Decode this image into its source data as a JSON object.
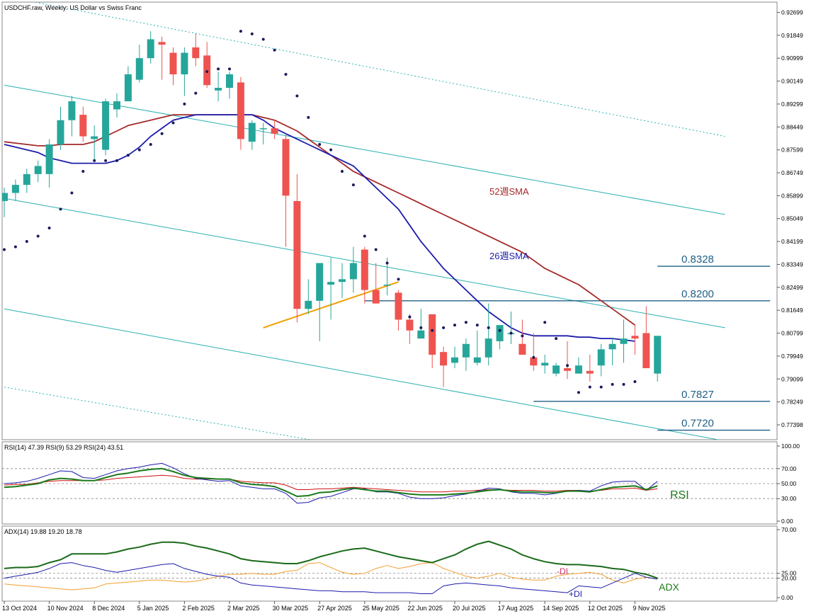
{
  "header": {
    "main_title": "USDCHF.raw, Weekly:  US Dollar vs Swiss Franc",
    "rsi_title": "RSI(14) 47.39 RSI(9) 53.29 RSI(24) 43.51",
    "adx_title": "ADX(14) 19.88 19.20 18.78"
  },
  "colors": {
    "bull": "#26a69a",
    "bear": "#ef5350",
    "sma26": "#1c1caa",
    "sma52": "#a52a2a",
    "channel": "#2ab0b0",
    "sar": "#1a1a5e",
    "level": "#1f5f85",
    "trendline": "#f0a000",
    "rsi14": "#1a7a1a",
    "rsi9": "#1c1caa",
    "rsi24": "#cc1111",
    "adx": "#1a6a1a",
    "plus_di": "#1c1caa",
    "minus_di": "#f0a030"
  },
  "chart_data": {
    "type": "candlestick",
    "title": "USDCHF.raw, Weekly:  US Dollar vs Swiss Franc",
    "ylim": [
      0.769,
      0.93
    ],
    "price_ticks": [
      "0.92699",
      "0.91849",
      "0.90999",
      "0.90149",
      "0.89299",
      "0.88449",
      "0.87599",
      "0.86749",
      "0.85899",
      "0.85049",
      "0.84199",
      "0.83349",
      "0.82499",
      "0.81649",
      "0.80799",
      "0.79949",
      "0.79099",
      "0.78249",
      "0.77398"
    ],
    "x_labels": [
      {
        "label": "13 Oct 2024",
        "index": 0
      },
      {
        "label": "10 Nov 2024",
        "index": 4
      },
      {
        "label": "8 Dec 2024",
        "index": 8
      },
      {
        "label": "5 Jan 2025",
        "index": 12
      },
      {
        "label": "2 Feb 2025",
        "index": 16
      },
      {
        "label": "2 Mar 2025",
        "index": 20
      },
      {
        "label": "30 Mar 2025",
        "index": 24
      },
      {
        "label": "27 Apr 2025",
        "index": 28
      },
      {
        "label": "25 May 2025",
        "index": 32
      },
      {
        "label": "22 Jun 2025",
        "index": 36
      },
      {
        "label": "20 Jul 2025",
        "index": 40
      },
      {
        "label": "17 Aug 2025",
        "index": 44
      },
      {
        "label": "14 Sep 2025",
        "index": 48
      },
      {
        "label": "12 Oct 2025",
        "index": 52
      },
      {
        "label": "9 Nov 2025",
        "index": 56
      }
    ],
    "candles": [
      [
        0.857,
        0.862,
        0.851,
        0.86
      ],
      [
        0.86,
        0.865,
        0.857,
        0.863
      ],
      [
        0.863,
        0.869,
        0.86,
        0.867
      ],
      [
        0.867,
        0.872,
        0.864,
        0.87
      ],
      [
        0.867,
        0.88,
        0.862,
        0.878
      ],
      [
        0.878,
        0.892,
        0.876,
        0.887
      ],
      [
        0.887,
        0.896,
        0.881,
        0.894
      ],
      [
        0.889,
        0.892,
        0.879,
        0.881
      ],
      [
        0.88,
        0.885,
        0.872,
        0.881
      ],
      [
        0.876,
        0.895,
        0.874,
        0.894
      ],
      [
        0.891,
        0.897,
        0.888,
        0.894
      ],
      [
        0.894,
        0.907,
        0.894,
        0.904
      ],
      [
        0.902,
        0.915,
        0.901,
        0.91
      ],
      [
        0.91,
        0.92,
        0.908,
        0.917
      ],
      [
        0.916,
        0.918,
        0.902,
        0.915
      ],
      [
        0.912,
        0.914,
        0.9,
        0.904
      ],
      [
        0.904,
        0.914,
        0.896,
        0.912
      ],
      [
        0.914,
        0.919,
        0.907,
        0.91
      ],
      [
        0.911,
        0.916,
        0.899,
        0.9
      ],
      [
        0.898,
        0.905,
        0.894,
        0.899
      ],
      [
        0.899,
        0.905,
        0.895,
        0.904
      ],
      [
        0.901,
        0.903,
        0.876,
        0.88
      ],
      [
        0.879,
        0.887,
        0.876,
        0.886
      ],
      [
        0.884,
        0.886,
        0.878,
        0.884
      ],
      [
        0.884,
        0.887,
        0.88,
        0.882
      ],
      [
        0.88,
        0.882,
        0.84,
        0.859
      ],
      [
        0.857,
        0.867,
        0.812,
        0.817
      ],
      [
        0.817,
        0.828,
        0.815,
        0.82
      ],
      [
        0.82,
        0.833,
        0.805,
        0.834
      ],
      [
        0.826,
        0.836,
        0.813,
        0.827
      ],
      [
        0.827,
        0.834,
        0.821,
        0.828
      ],
      [
        0.828,
        0.84,
        0.823,
        0.834
      ],
      [
        0.839,
        0.84,
        0.819,
        0.824
      ],
      [
        0.824,
        0.834,
        0.819,
        0.819
      ],
      [
        0.826,
        0.836,
        0.822,
        0.826
      ],
      [
        0.823,
        0.824,
        0.809,
        0.813
      ],
      [
        0.813,
        0.815,
        0.804,
        0.809
      ],
      [
        0.806,
        0.817,
        0.806,
        0.809
      ],
      [
        0.815,
        0.814,
        0.795,
        0.8
      ],
      [
        0.801,
        0.803,
        0.788,
        0.796
      ],
      [
        0.797,
        0.803,
        0.795,
        0.799
      ],
      [
        0.799,
        0.806,
        0.794,
        0.804
      ],
      [
        0.797,
        0.809,
        0.796,
        0.799
      ],
      [
        0.799,
        0.819,
        0.796,
        0.806
      ],
      [
        0.805,
        0.811,
        0.802,
        0.811
      ],
      [
        0.808,
        0.816,
        0.804,
        0.808
      ],
      [
        0.804,
        0.813,
        0.8,
        0.8
      ],
      [
        0.799,
        0.808,
        0.794,
        0.796
      ],
      [
        0.796,
        0.8,
        0.793,
        0.797
      ],
      [
        0.793,
        0.797,
        0.792,
        0.796
      ],
      [
        0.795,
        0.805,
        0.791,
        0.794
      ],
      [
        0.793,
        0.799,
        0.794,
        0.796
      ],
      [
        0.794,
        0.8,
        0.79,
        0.793
      ],
      [
        0.796,
        0.804,
        0.792,
        0.802
      ],
      [
        0.802,
        0.806,
        0.796,
        0.804
      ],
      [
        0.804,
        0.813,
        0.797,
        0.806
      ],
      [
        0.807,
        0.811,
        0.8,
        0.806
      ],
      [
        0.808,
        0.818,
        0.796,
        0.795
      ],
      [
        0.793,
        0.806,
        0.79,
        0.807
      ]
    ],
    "sma26": [
      0.878,
      0.877,
      0.876,
      0.875,
      0.873,
      0.872,
      0.871,
      0.871,
      0.871,
      0.871,
      0.872,
      0.874,
      0.877,
      0.881,
      0.884,
      0.887,
      0.888,
      0.889,
      0.889,
      0.889,
      0.889,
      0.889,
      0.889,
      0.887,
      0.884,
      0.882,
      0.88,
      0.878,
      0.876,
      0.874,
      0.872,
      0.87,
      0.866,
      0.862,
      0.858,
      0.854,
      0.848,
      0.842,
      0.837,
      0.832,
      0.828,
      0.824,
      0.82,
      0.816,
      0.813,
      0.81,
      0.808,
      0.807,
      0.807,
      0.807,
      0.807,
      0.8065,
      0.8065,
      0.806,
      0.806,
      0.8055,
      0.805
    ],
    "sma52": [
      0.879,
      0.8785,
      0.878,
      0.8775,
      0.8775,
      0.878,
      0.878,
      0.878,
      0.879,
      0.881,
      0.883,
      0.885,
      0.886,
      0.887,
      0.888,
      0.889,
      0.889,
      0.889,
      0.889,
      0.889,
      0.889,
      0.889,
      0.889,
      0.888,
      0.887,
      0.885,
      0.883,
      0.88,
      0.877,
      0.874,
      0.871,
      0.868,
      0.866,
      0.864,
      0.862,
      0.86,
      0.858,
      0.856,
      0.854,
      0.852,
      0.85,
      0.848,
      0.846,
      0.844,
      0.842,
      0.84,
      0.838,
      0.835,
      0.832,
      0.83,
      0.828,
      0.826,
      0.823,
      0.82,
      0.817,
      0.814,
      0.811
    ],
    "sar": [
      0.839,
      0.84,
      0.842,
      0.844,
      0.847,
      0.854,
      0.86,
      0.868,
      0.872,
      0.872,
      0.872,
      0.874,
      0.876,
      0.878,
      0.882,
      0.886,
      0.893,
      0.897,
      0.905,
      0.906,
      0.906,
      0.92,
      0.919,
      0.917,
      0.913,
      0.904,
      0.896,
      0.888,
      0.878,
      0.876,
      0.868,
      0.863,
      0.844,
      0.839,
      0.834,
      0.828,
      0.814,
      0.81,
      0.809,
      0.81,
      0.811,
      0.812,
      0.811,
      0.81,
      0.809,
      0.808,
      0.807,
      0.799,
      0.812,
      0.806,
      0.796,
      0.786,
      0.788,
      0.788,
      0.789,
      0.789,
      0.79
    ],
    "channel_lines": [
      {
        "label": "upper-dotted",
        "index_start": 0,
        "value_start": 0.933,
        "index_end": 64,
        "value_end": 0.881
      },
      {
        "label": "upper",
        "index_start": 0,
        "value_start": 0.9,
        "index_end": 64,
        "value_end": 0.852
      },
      {
        "label": "middle",
        "index_start": 0,
        "value_start": 0.858,
        "index_end": 64,
        "value_end": 0.81
      },
      {
        "label": "lower",
        "index_start": 0,
        "value_start": 0.817,
        "index_end": 64,
        "value_end": 0.768
      },
      {
        "label": "lower-dotted",
        "index_start": 0,
        "value_start": 0.788,
        "index_end": 64,
        "value_end": 0.742
      }
    ],
    "trendline": {
      "index_start": 23,
      "value_start": 0.81,
      "index_end": 35,
      "value_end": 0.827
    },
    "levels": [
      {
        "label": "0.8328",
        "value": 0.8328,
        "index_start": 58,
        "index_end": 68
      },
      {
        "label": "0.8200",
        "value": 0.82,
        "index_start": 32,
        "index_end": 68
      },
      {
        "label": "0.7827",
        "value": 0.7827,
        "index_start": 47,
        "index_end": 68
      },
      {
        "label": "0.7720",
        "value": 0.772,
        "index_start": 58,
        "index_end": 68
      }
    ],
    "annotations": {
      "sma52_label": "52週SMA",
      "sma26_label": "26週SMA",
      "rsi_label": "RSI",
      "adx_label": "ADX",
      "minus_di_label": "-DI",
      "plus_di_label": "+DI"
    },
    "rsi": {
      "ylim": [
        0,
        100
      ],
      "ticks": [
        "100.00",
        "70.00",
        "50.00",
        "30.00",
        "0.00"
      ],
      "rsi14": [
        45,
        46,
        48,
        50,
        55,
        57,
        56,
        54,
        54,
        58,
        62,
        64,
        67,
        69,
        70,
        66,
        61,
        58,
        57,
        56,
        56,
        51,
        49,
        48,
        46,
        40,
        33,
        34,
        38,
        39,
        42,
        44,
        42,
        40,
        40,
        38,
        36,
        35,
        35,
        35,
        36,
        37,
        39,
        41,
        42,
        40,
        39,
        39,
        38,
        38,
        40,
        40,
        39,
        42,
        45,
        46,
        47,
        42,
        47
      ],
      "rsi9": [
        50,
        51,
        53,
        57,
        62,
        67,
        66,
        58,
        57,
        62,
        67,
        70,
        72,
        75,
        77,
        71,
        63,
        57,
        55,
        53,
        54,
        47,
        45,
        43,
        43,
        37,
        24,
        25,
        31,
        33,
        38,
        43,
        43,
        39,
        39,
        37,
        32,
        30,
        30,
        31,
        34,
        36,
        40,
        44,
        43,
        39,
        37,
        37,
        35,
        37,
        40,
        41,
        40,
        47,
        52,
        53,
        53,
        41,
        53
      ],
      "rsi24": [
        48,
        49,
        49,
        51,
        53,
        54,
        54,
        54,
        54,
        55,
        57,
        58,
        59,
        60,
        61,
        60,
        57,
        56,
        56,
        56,
        56,
        53,
        52,
        51,
        51,
        48,
        42,
        42,
        43,
        43,
        44,
        45,
        44,
        43,
        42,
        41,
        40,
        39,
        39,
        39,
        40,
        40,
        41,
        42,
        42,
        41,
        41,
        41,
        40,
        40,
        41,
        41,
        40,
        41,
        43,
        43,
        44,
        41,
        43
      ]
    },
    "adx": {
      "ylim": [
        0,
        70
      ],
      "ticks": [
        "70.00",
        "25.00",
        "20.00",
        "0.00"
      ],
      "adx": [
        30,
        31,
        31,
        32,
        36,
        39,
        45,
        45,
        45,
        45,
        47,
        50,
        52,
        55,
        57,
        57,
        56,
        53,
        51,
        48,
        45,
        40,
        38,
        37,
        36,
        35,
        35,
        38,
        42,
        45,
        48,
        50,
        51,
        48,
        45,
        42,
        40,
        38,
        36,
        40,
        44,
        50,
        55,
        58,
        54,
        50,
        44,
        40,
        37,
        35,
        34,
        34,
        33,
        32,
        30,
        29,
        26,
        24,
        20
      ],
      "plus_di": [
        20,
        22,
        24,
        26,
        30,
        35,
        36,
        33,
        31,
        28,
        26,
        28,
        30,
        32,
        34,
        35,
        30,
        27,
        24,
        22,
        21,
        15,
        13,
        12,
        11,
        10,
        9,
        8,
        7,
        7,
        6,
        6,
        6,
        5,
        5,
        5,
        5,
        4,
        4,
        12,
        14,
        15,
        14,
        13,
        12,
        10,
        9,
        8,
        7,
        6,
        5,
        12,
        11,
        10,
        15,
        20,
        25,
        21,
        19
      ],
      "minus_di": [
        14,
        13,
        12,
        11,
        10,
        9,
        8,
        9,
        10,
        14,
        15,
        16,
        17,
        18,
        18,
        17,
        16,
        17,
        19,
        22,
        24,
        24,
        25,
        24,
        24,
        27,
        28,
        35,
        36,
        31,
        26,
        24,
        25,
        30,
        33,
        30,
        32,
        35,
        36,
        30,
        26,
        22,
        20,
        22,
        25,
        21,
        19,
        18,
        18,
        22,
        24,
        25,
        26,
        24,
        18,
        15,
        19,
        21,
        19
      ]
    }
  }
}
